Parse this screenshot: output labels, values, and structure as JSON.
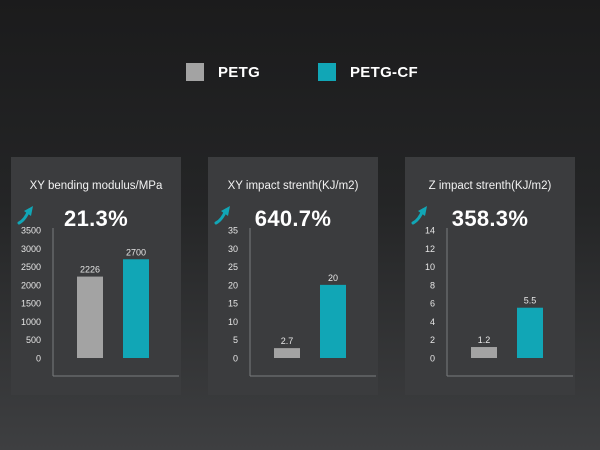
{
  "legend": [
    {
      "label": "PETG",
      "color": "#a3a3a3"
    },
    {
      "label": "PETG-CF",
      "color": "#11a6b6"
    }
  ],
  "arrow_icon": "trend-up-arrow-icon",
  "chart_data": [
    {
      "type": "bar",
      "title": "XY bending modulus/MPa",
      "improvement": "21.3%",
      "categories": [
        "PETG",
        "PETG-CF"
      ],
      "values": [
        2226,
        2700
      ],
      "value_labels": [
        "2226",
        "2700"
      ],
      "colors": [
        "#a3a3a3",
        "#11a6b6"
      ],
      "yticks": [
        "3500",
        "3000",
        "2500",
        "2000",
        "1500",
        "1000",
        "500",
        "0"
      ],
      "ylim": [
        0,
        3500
      ]
    },
    {
      "type": "bar",
      "title": "XY impact strenth(KJ/m2)",
      "improvement": "640.7%",
      "categories": [
        "PETG",
        "PETG-CF"
      ],
      "values": [
        2.7,
        20
      ],
      "value_labels": [
        "2.7",
        "20"
      ],
      "colors": [
        "#a3a3a3",
        "#11a6b6"
      ],
      "yticks": [
        "35",
        "30",
        "25",
        "20",
        "15",
        "10",
        "5",
        "0"
      ],
      "ylim": [
        0,
        35
      ]
    },
    {
      "type": "bar",
      "title": "Z impact strenth(KJ/m2)",
      "improvement": "358.3%",
      "categories": [
        "PETG",
        "PETG-CF"
      ],
      "values": [
        1.2,
        5.5
      ],
      "value_labels": [
        "1.2",
        "5.5"
      ],
      "colors": [
        "#a3a3a3",
        "#11a6b6"
      ],
      "yticks": [
        "14",
        "12",
        "10",
        "8",
        "6",
        "4",
        "2",
        "0"
      ],
      "ylim": [
        0,
        14
      ]
    }
  ]
}
